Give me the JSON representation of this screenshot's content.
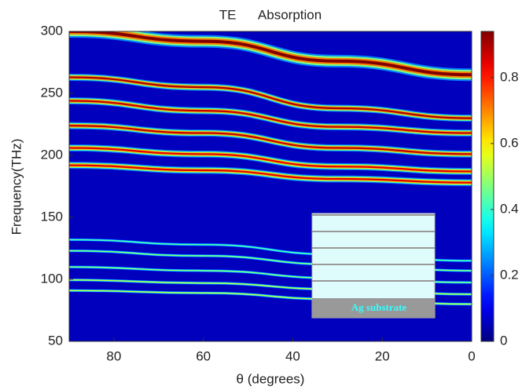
{
  "chart_data": {
    "type": "heatmap",
    "title": "TE      Absorption",
    "xlabel": "θ (degrees)",
    "ylabel": "Frequency(THz)",
    "xlim": [
      90,
      0
    ],
    "xticks": [
      80,
      60,
      40,
      20,
      0
    ],
    "ylim": [
      50,
      300
    ],
    "yticks": [
      50,
      100,
      150,
      200,
      250,
      300
    ],
    "clim": [
      0,
      0.94
    ],
    "cticks": [
      0,
      0.2,
      0.4,
      0.6,
      0.8
    ],
    "colormap": "jet",
    "x": [
      90,
      60,
      30,
      0
    ],
    "modes": [
      {
        "values": [
          300,
          292,
          276,
          265
        ],
        "peak": 0.94
      },
      {
        "values": [
          263,
          255,
          238,
          230
        ],
        "peak": 0.9
      },
      {
        "values": [
          244,
          236,
          223,
          218
        ],
        "peak": 0.88
      },
      {
        "values": [
          224,
          218,
          206,
          201
        ],
        "peak": 0.88
      },
      {
        "values": [
          206,
          201,
          191,
          187
        ],
        "peak": 0.85
      },
      {
        "values": [
          192,
          188,
          181,
          178
        ],
        "peak": 0.85
      },
      {
        "values": [
          132,
          128,
          120,
          115
        ],
        "peak": 0.45
      },
      {
        "values": [
          123,
          119,
          112,
          107
        ],
        "peak": 0.5
      },
      {
        "values": [
          110,
          107,
          101,
          97.5
        ],
        "peak": 0.5
      },
      {
        "values": [
          99.5,
          97,
          92,
          88
        ],
        "peak": 0.55
      },
      {
        "values": [
          91,
          89,
          84,
          80
        ],
        "peak": 0.55
      }
    ]
  },
  "inset": {
    "label": "Ag substrate"
  }
}
